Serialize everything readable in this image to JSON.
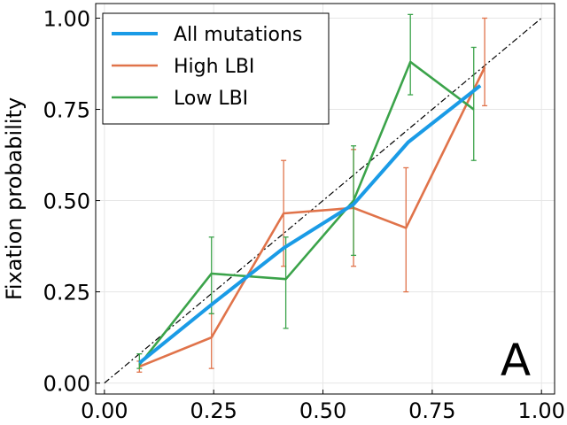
{
  "chart_data": {
    "type": "line",
    "title": "",
    "xlabel": "",
    "ylabel": "Fixation probability",
    "panel_label": "A",
    "xlim": [
      -0.02,
      1.03
    ],
    "ylim": [
      -0.03,
      1.04
    ],
    "xticks": [
      0.0,
      0.25,
      0.5,
      0.75,
      1.0
    ],
    "xtick_labels": [
      "0.00",
      "0.25",
      "0.50",
      "0.75",
      "1.00"
    ],
    "yticks": [
      0.0,
      0.25,
      0.5,
      0.75,
      1.0
    ],
    "ytick_labels": [
      "0.00",
      "0.25",
      "0.50",
      "0.75",
      "1.00"
    ],
    "grid": true,
    "legend_position": "top-left",
    "diagonal": {
      "style": "dash-dot",
      "color": "#000000",
      "from": [
        0,
        0
      ],
      "to": [
        1,
        1
      ]
    },
    "series": [
      {
        "name": "All mutations",
        "color": "#1a9be6",
        "x": [
          0.08,
          0.245,
          0.41,
          0.57,
          0.695,
          0.86
        ],
        "y": [
          0.055,
          0.215,
          0.37,
          0.49,
          0.66,
          0.815
        ]
      },
      {
        "name": "High LBI",
        "color": "#e0734a",
        "x": [
          0.08,
          0.245,
          0.41,
          0.57,
          0.69,
          0.87
        ],
        "y": [
          0.045,
          0.125,
          0.465,
          0.48,
          0.425,
          0.865
        ],
        "err_low": [
          0.03,
          0.04,
          0.32,
          0.32,
          0.25,
          0.76
        ],
        "err_high": [
          0.06,
          0.19,
          0.61,
          0.64,
          0.59,
          1.0
        ]
      },
      {
        "name": "Low LBI",
        "color": "#3ba34a",
        "x": [
          0.08,
          0.245,
          0.415,
          0.57,
          0.7,
          0.845
        ],
        "y": [
          0.05,
          0.3,
          0.285,
          0.5,
          0.88,
          0.75
        ],
        "err_low": [
          0.04,
          0.19,
          0.15,
          0.35,
          0.79,
          0.61
        ],
        "err_high": [
          0.08,
          0.4,
          0.4,
          0.65,
          1.01,
          0.92
        ]
      }
    ]
  }
}
